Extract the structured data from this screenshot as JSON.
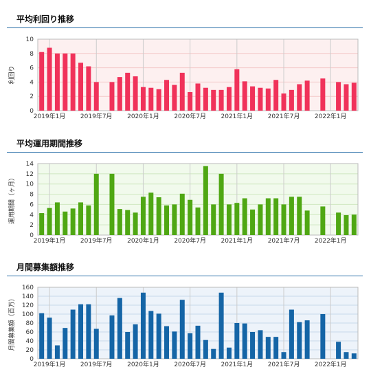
{
  "sections": [
    {
      "title": "平均利回り推移"
    },
    {
      "title": "平均運用期間推移"
    },
    {
      "title": "月間募集額推移"
    }
  ],
  "chart_data": [
    {
      "type": "bar",
      "title": "平均利回り推移",
      "ylabel": "利回り",
      "ylim": [
        0,
        10
      ],
      "yticks": [
        0,
        2,
        4,
        6,
        8,
        10
      ],
      "xtick_labels": [
        "2019年1月",
        "2019年7月",
        "2020年1月",
        "2020年7月",
        "2021年1月",
        "2021年7月",
        "2022年1月"
      ],
      "bar_color": "#f0325a",
      "background": "#fdf0f0",
      "grid_color": "#f3c8c8",
      "values": [
        8.2,
        8.8,
        8.0,
        8.0,
        8.0,
        6.7,
        6.2,
        4.0,
        null,
        4.0,
        4.7,
        5.3,
        4.8,
        3.3,
        3.2,
        3.0,
        4.3,
        3.6,
        5.3,
        2.6,
        3.8,
        3.2,
        2.9,
        2.9,
        3.3,
        5.8,
        4.1,
        3.4,
        3.2,
        3.1,
        4.3,
        2.4,
        2.9,
        3.7,
        4.2,
        null,
        4.5,
        null,
        4.0,
        3.7,
        3.9
      ]
    },
    {
      "type": "bar",
      "title": "平均運用期間推移",
      "ylabel": "運用期間（ヶ月）",
      "ylim": [
        0,
        14
      ],
      "yticks": [
        0,
        2,
        4,
        6,
        8,
        10,
        12,
        14
      ],
      "xtick_labels": [
        "2019年1月",
        "2019年7月",
        "2020年1月",
        "2020年7月",
        "2021年1月",
        "2021年7月",
        "2022年1月"
      ],
      "bar_color": "#4fa713",
      "background": "#f1faec",
      "grid_color": "#cfe7c0",
      "values": [
        4.3,
        5.3,
        6.4,
        4.6,
        5.2,
        6.4,
        5.8,
        12.0,
        null,
        12.0,
        5.1,
        4.9,
        4.4,
        7.5,
        8.3,
        7.4,
        5.8,
        6.0,
        8.1,
        6.9,
        5.4,
        13.5,
        6.0,
        12.0,
        6.0,
        6.3,
        7.2,
        5.0,
        6.0,
        7.2,
        7.2,
        6.0,
        7.5,
        7.5,
        4.8,
        null,
        5.6,
        null,
        4.4,
        3.9,
        4.0
      ]
    },
    {
      "type": "bar",
      "title": "月間募集額推移",
      "ylabel": "月間募集額（百万）",
      "ylim": [
        0,
        160
      ],
      "yticks": [
        0,
        20,
        40,
        60,
        80,
        100,
        120,
        140,
        160
      ],
      "xtick_labels": [
        "2019年1月",
        "2019年7月",
        "2020年1月",
        "2020年7月",
        "2021年1月",
        "2021年7月",
        "2022年1月"
      ],
      "bar_color": "#1565a6",
      "background": "#edf3fa",
      "grid_color": "#c6d8ea",
      "values": [
        102,
        92,
        30,
        69,
        110,
        122,
        122,
        67,
        null,
        97,
        136,
        60,
        77,
        148,
        107,
        101,
        73,
        61,
        132,
        57,
        74,
        42,
        22,
        148,
        25,
        80,
        79,
        60,
        64,
        49,
        49,
        15,
        110,
        82,
        86,
        null,
        100,
        null,
        38,
        15,
        12
      ]
    }
  ]
}
